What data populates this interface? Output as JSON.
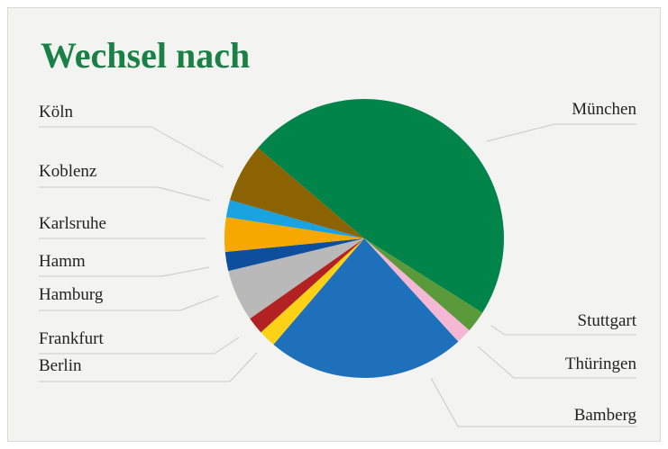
{
  "chart_data": {
    "type": "pie",
    "title": "Wechsel nach",
    "categories": [
      "München",
      "Stuttgart",
      "Thüringen",
      "Bamberg",
      "Berlin",
      "Frankfurt",
      "Hamburg",
      "Hamm",
      "Karlsruhe",
      "Koblenz",
      "Köln"
    ],
    "values": [
      47.7,
      2.5,
      1.8,
      23,
      2,
      2,
      6,
      2.2,
      4,
      2,
      6.8
    ],
    "colors": [
      "#00844a",
      "#5a9a3a",
      "#f4b8d4",
      "#1f70bb",
      "#fcd116",
      "#b22222",
      "#b9b9b9",
      "#0d4f9c",
      "#f6a800",
      "#1aa3e0",
      "#8b6300"
    ]
  }
}
